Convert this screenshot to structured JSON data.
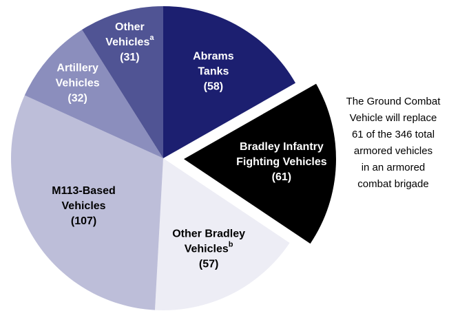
{
  "chart_data": {
    "type": "pie",
    "categories": [
      [
        "Abrams",
        "Tanks"
      ],
      [
        "Bradley Infantry",
        "Fighting Vehicles"
      ],
      [
        "Other Bradley",
        "Vehicles"
      ],
      [
        "M113-Based",
        "Vehicles"
      ],
      [
        "Artillery",
        "Vehicles"
      ],
      [
        "Other",
        "Vehicles"
      ]
    ],
    "values": [
      58,
      61,
      57,
      107,
      32,
      31
    ],
    "value_labels": [
      "(58)",
      "(61)",
      "(57)",
      "(107)",
      "(32)",
      "(31)"
    ],
    "colors": [
      "#1c1f70",
      "#000000",
      "#ededf5",
      "#bdbed9",
      "#8b8ebd",
      "#505494"
    ],
    "text_colors": [
      "#ffffff",
      "#ffffff",
      "#000000",
      "#000000",
      "#ffffff",
      "#ffffff"
    ],
    "exploded": [
      1
    ],
    "markers": [
      {
        "index": 5,
        "label": "a"
      },
      {
        "index": 2,
        "label": "b"
      }
    ],
    "annotation": [
      "The Ground Combat",
      "Vehicle will replace",
      "61 of the 346 total",
      "armored vehicles",
      "in an armored",
      "combat brigade"
    ]
  }
}
